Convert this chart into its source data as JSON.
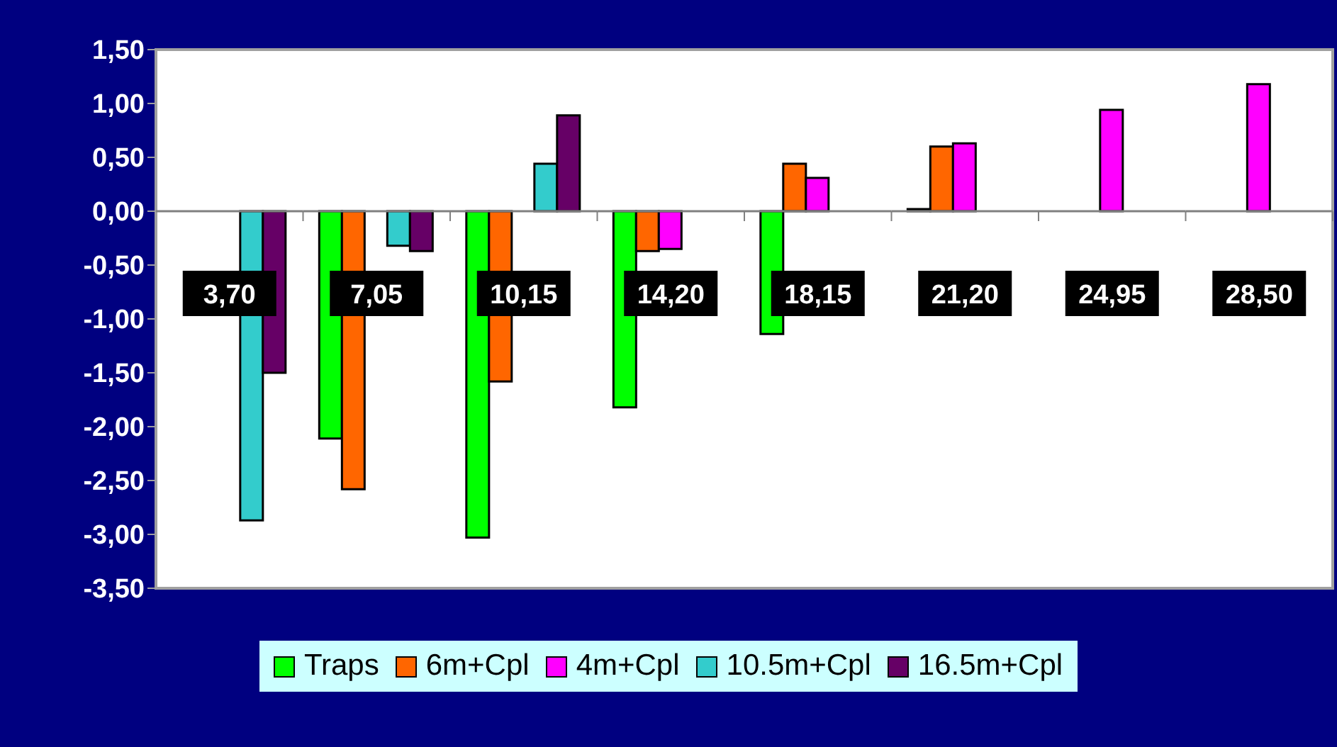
{
  "chart_data": {
    "type": "bar",
    "categories": [
      "3,70",
      "7,05",
      "10,15",
      "14,20",
      "18,15",
      "21,20",
      "24,95",
      "28,50"
    ],
    "series": [
      {
        "name": "Traps",
        "color": "#00ff00",
        "values": [
          null,
          -2.11,
          -3.03,
          -1.82,
          -1.14,
          0.02,
          null,
          null
        ]
      },
      {
        "name": "6m+Cpl",
        "color": "#ff6600",
        "values": [
          null,
          -2.58,
          -1.58,
          -0.37,
          0.44,
          0.6,
          null,
          null
        ]
      },
      {
        "name": "4m+Cpl",
        "color": "#ff00ff",
        "values": [
          null,
          null,
          null,
          -0.35,
          0.31,
          0.63,
          0.94,
          1.18
        ]
      },
      {
        "name": "10.5m+Cpl",
        "color": "#33cccc",
        "values": [
          -2.87,
          -0.32,
          0.44,
          null,
          null,
          null,
          null,
          null
        ]
      },
      {
        "name": "16.5m+Cpl",
        "color": "#660066",
        "values": [
          -1.5,
          -0.37,
          0.89,
          null,
          null,
          null,
          null,
          null
        ]
      }
    ],
    "ylim": [
      -3.5,
      1.5
    ],
    "yticks": [
      {
        "value": -3.5,
        "label": "-3,50"
      },
      {
        "value": -3,
        "label": "-3,00"
      },
      {
        "value": -2.5,
        "label": "-2,50"
      },
      {
        "value": -2,
        "label": "-2,00"
      },
      {
        "value": -1.5,
        "label": "-1,50"
      },
      {
        "value": -1,
        "label": "-1,00"
      },
      {
        "value": -0.5,
        "label": "-0,50"
      },
      {
        "value": 0,
        "label": "0,00"
      },
      {
        "value": 0.5,
        "label": "0,50"
      },
      {
        "value": 1,
        "label": "1,00"
      },
      {
        "value": 1.5,
        "label": "1,50"
      }
    ],
    "legend": "bottom"
  }
}
